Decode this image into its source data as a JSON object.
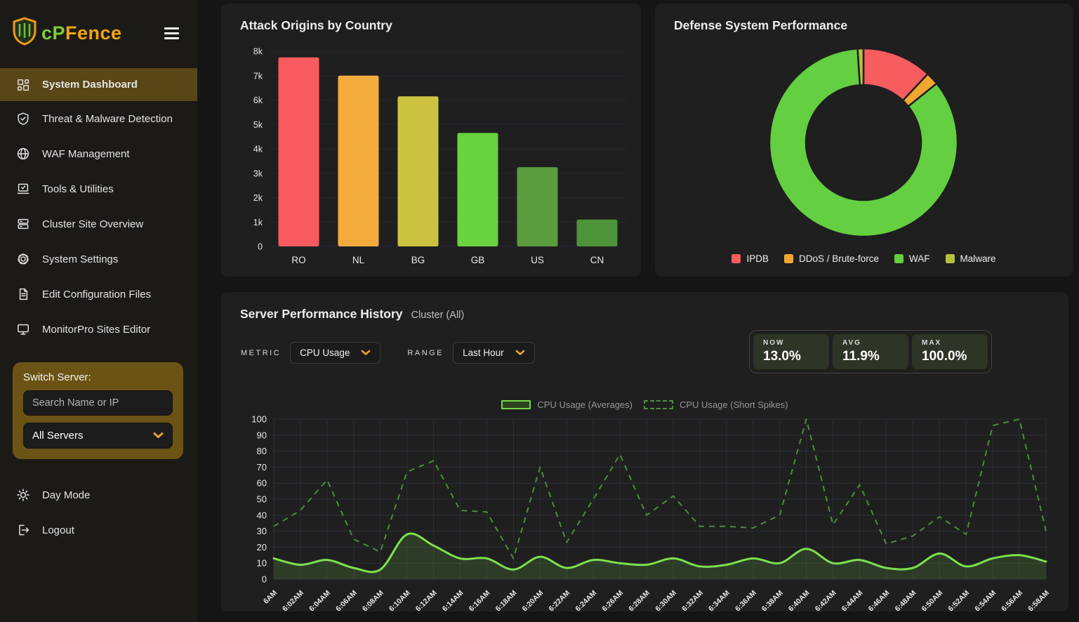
{
  "brand": {
    "part1": "cP",
    "part2": "Fence"
  },
  "sidebar": {
    "items": [
      {
        "label": "System Dashboard",
        "icon": "dashboard-icon",
        "active": true
      },
      {
        "label": "Threat & Malware Detection",
        "icon": "shield-check-icon",
        "active": false
      },
      {
        "label": "WAF Management",
        "icon": "globe-icon",
        "active": false
      },
      {
        "label": "Tools & Utilities",
        "icon": "tools-icon",
        "active": false
      },
      {
        "label": "Cluster Site Overview",
        "icon": "cluster-icon",
        "active": false
      },
      {
        "label": "System Settings",
        "icon": "gear-icon",
        "active": false
      },
      {
        "label": "Edit Configuration Files",
        "icon": "file-icon",
        "active": false
      },
      {
        "label": "MonitorPro Sites Editor",
        "icon": "monitor-icon",
        "active": false
      }
    ],
    "switch_server": {
      "title": "Switch Server:",
      "search_placeholder": "Search Name or IP",
      "select_value": "All Servers"
    },
    "footer_items": [
      {
        "label": "Day Mode",
        "icon": "sun-icon"
      },
      {
        "label": "Logout",
        "icon": "logout-icon"
      }
    ]
  },
  "history": {
    "metric_label": "METRIC",
    "metric_value": "CPU Usage",
    "range_label": "RANGE",
    "range_value": "Last Hour",
    "stats": [
      {
        "label": "NOW",
        "value": "13.0%"
      },
      {
        "label": "AVG",
        "value": "11.9%"
      },
      {
        "label": "MAX",
        "value": "100.0%"
      }
    ]
  },
  "colors": {
    "accent_gold": "#e2a52e",
    "active_item_bg": "#594617",
    "card_bg": "#1f1f1f",
    "solid_line": "#7de04e",
    "dashed_line": "#4d8c3d"
  },
  "chart_data": [
    {
      "type": "bar",
      "title": "Attack Origins by Country",
      "categories": [
        "RO",
        "NL",
        "BG",
        "GB",
        "US",
        "CN"
      ],
      "values": [
        7750,
        7000,
        6150,
        4650,
        3250,
        1100
      ],
      "bar_colors": [
        "#fa5b60",
        "#f3ab3c",
        "#cbc340",
        "#68d33f",
        "#5a9c3e",
        "#4d9338"
      ],
      "xlabel": "",
      "ylabel": "",
      "ylim": [
        0,
        8000
      ],
      "ytick_step": 1000,
      "ytick_labels": [
        "0",
        "1k",
        "2k",
        "3k",
        "4k",
        "5k",
        "6k",
        "7k",
        "8k"
      ],
      "grid": "horizontal"
    },
    {
      "type": "pie",
      "donut": true,
      "title": "Defense System Performance",
      "labels": [
        "IPDB",
        "DDoS / Brute-force",
        "WAF",
        "Malware"
      ],
      "values": [
        12,
        2.2,
        84.8,
        1
      ],
      "colors": [
        "#f75c5e",
        "#f1a62f",
        "#63cf41",
        "#b6c13b"
      ],
      "legend_position": "bottom"
    },
    {
      "type": "line",
      "title": "Server Performance History",
      "subtitle": "Cluster (All)",
      "x": [
        "6AM",
        "6:02AM",
        "6:04AM",
        "6:06AM",
        "6:08AM",
        "6:10AM",
        "6:12AM",
        "6:14AM",
        "6:16AM",
        "6:18AM",
        "6:20AM",
        "6:22AM",
        "6:24AM",
        "6:26AM",
        "6:28AM",
        "6:30AM",
        "6:32AM",
        "6:34AM",
        "6:36AM",
        "6:38AM",
        "6:40AM",
        "6:42AM",
        "6:44AM",
        "6:46AM",
        "6:48AM",
        "6:50AM",
        "6:52AM",
        "6:54AM",
        "6:56AM",
        "6:58AM"
      ],
      "series": [
        {
          "name": "CPU Usage (Averages)",
          "style": "solid",
          "color": "#7de04e",
          "fill": "rgba(119,214,72,0.16)",
          "values": [
            13,
            9,
            12,
            7,
            6,
            28,
            21,
            13,
            13,
            6,
            14,
            7,
            12,
            10,
            9,
            13,
            8,
            9,
            13,
            10,
            19,
            10,
            12,
            7,
            7,
            16,
            8,
            13,
            15,
            11
          ]
        },
        {
          "name": "CPU Usage (Short Spikes)",
          "style": "dashed",
          "color": "#4d8c3d",
          "values": [
            33,
            43,
            62,
            25,
            17,
            67,
            74,
            43,
            42,
            13,
            70,
            23,
            50,
            78,
            40,
            52,
            33,
            33,
            32,
            40,
            100,
            34,
            59,
            22,
            27,
            39,
            28,
            96,
            100,
            30
          ]
        }
      ],
      "ylim": [
        0,
        100
      ],
      "ytick_step": 10,
      "grid": "both",
      "legend_position": "top"
    }
  ]
}
